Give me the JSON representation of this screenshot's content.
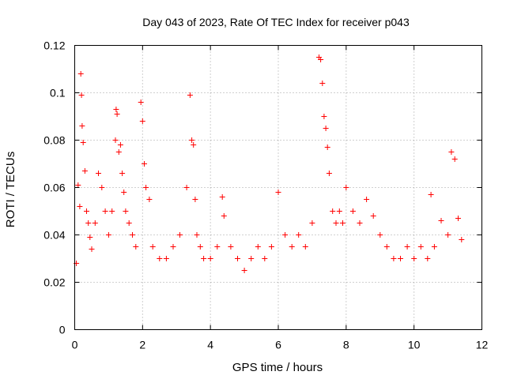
{
  "chart_data": {
    "type": "scatter",
    "title": "Day 043 of 2023, Rate Of TEC Index for receiver p043",
    "xlabel": "GPS time / hours",
    "ylabel": "ROTI / TECUs",
    "xlim": [
      0,
      12
    ],
    "ylim": [
      0,
      0.12
    ],
    "x_ticks": [
      0,
      2,
      4,
      6,
      8,
      10,
      12
    ],
    "x_tick_labels": [
      "0",
      "2",
      "4",
      "6",
      "8",
      "10",
      "12"
    ],
    "y_ticks": [
      0,
      0.02,
      0.04,
      0.06,
      0.08,
      0.1,
      0.12
    ],
    "y_tick_labels": [
      "0",
      "0.02",
      "0.04",
      "0.06",
      "0.08",
      "0.1",
      "0.12"
    ],
    "grid": true,
    "marker": "+",
    "marker_color": "#ff0000",
    "series": [
      {
        "name": "ROTI",
        "x": [
          0.05,
          0.1,
          0.15,
          0.18,
          0.2,
          0.22,
          0.25,
          0.3,
          0.35,
          0.4,
          0.45,
          0.5,
          0.6,
          0.7,
          0.8,
          0.9,
          1.0,
          1.1,
          1.2,
          1.22,
          1.25,
          1.3,
          1.35,
          1.4,
          1.45,
          1.5,
          1.6,
          1.7,
          1.8,
          1.95,
          2.0,
          2.05,
          2.1,
          2.2,
          2.3,
          2.5,
          2.7,
          2.9,
          3.1,
          3.3,
          3.4,
          3.45,
          3.5,
          3.55,
          3.6,
          3.7,
          3.8,
          4.0,
          4.2,
          4.35,
          4.4,
          4.6,
          4.8,
          5.0,
          5.2,
          5.4,
          5.6,
          5.8,
          6.0,
          6.2,
          6.4,
          6.6,
          6.8,
          7.0,
          7.2,
          7.25,
          7.3,
          7.35,
          7.4,
          7.45,
          7.5,
          7.6,
          7.7,
          7.8,
          7.9,
          8.0,
          8.2,
          8.4,
          8.6,
          8.8,
          9.0,
          9.2,
          9.4,
          9.6,
          9.8,
          10.0,
          10.2,
          10.4,
          10.5,
          10.6,
          10.8,
          11.0,
          11.1,
          11.2,
          11.3,
          11.4
        ],
        "y": [
          0.028,
          0.061,
          0.052,
          0.108,
          0.099,
          0.086,
          0.079,
          0.067,
          0.05,
          0.045,
          0.039,
          0.034,
          0.045,
          0.066,
          0.06,
          0.05,
          0.04,
          0.05,
          0.08,
          0.093,
          0.091,
          0.075,
          0.078,
          0.066,
          0.058,
          0.05,
          0.045,
          0.04,
          0.035,
          0.096,
          0.088,
          0.07,
          0.06,
          0.055,
          0.035,
          0.03,
          0.03,
          0.035,
          0.04,
          0.06,
          0.099,
          0.08,
          0.078,
          0.055,
          0.04,
          0.035,
          0.03,
          0.03,
          0.035,
          0.056,
          0.048,
          0.035,
          0.03,
          0.025,
          0.03,
          0.035,
          0.03,
          0.035,
          0.058,
          0.04,
          0.035,
          0.04,
          0.035,
          0.045,
          0.115,
          0.114,
          0.104,
          0.09,
          0.085,
          0.077,
          0.066,
          0.05,
          0.045,
          0.05,
          0.045,
          0.06,
          0.05,
          0.045,
          0.055,
          0.048,
          0.04,
          0.035,
          0.03,
          0.03,
          0.035,
          0.03,
          0.035,
          0.03,
          0.057,
          0.035,
          0.046,
          0.04,
          0.075,
          0.072,
          0.047,
          0.038
        ]
      }
    ]
  }
}
